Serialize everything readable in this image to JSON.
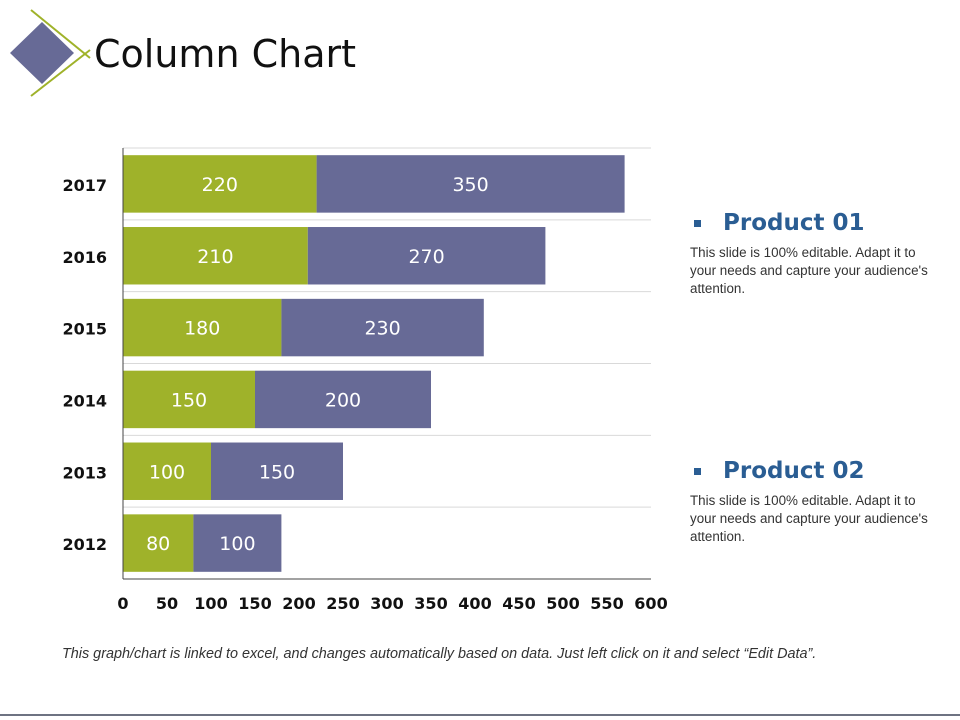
{
  "page": {
    "title": "Column Chart"
  },
  "colors": {
    "product_01": "#9fb22a",
    "product_02": "#676a96",
    "accent": "#2a5d93",
    "diamond": "#676a96",
    "diamond_line": "#9fb22a"
  },
  "chart_data": {
    "type": "bar",
    "orientation": "horizontal",
    "stacked": true,
    "categories": [
      "2017",
      "2016",
      "2015",
      "2014",
      "2013",
      "2012"
    ],
    "series": [
      {
        "name": "Product 01",
        "values": [
          220,
          210,
          180,
          150,
          100,
          80
        ]
      },
      {
        "name": "Product 02",
        "values": [
          350,
          270,
          230,
          200,
          150,
          100
        ]
      }
    ],
    "xlim": [
      0,
      600
    ],
    "xticks": [
      0,
      50,
      100,
      150,
      200,
      250,
      300,
      350,
      400,
      450,
      500,
      550,
      600
    ],
    "grid": true,
    "data_labels": true,
    "legend_placement": "right"
  },
  "legend": {
    "items": [
      {
        "name": "Product 01",
        "description": "This slide is 100% editable. Adapt it to your needs and capture your audience's attention."
      },
      {
        "name": "Product 02",
        "description": "This slide is 100% editable. Adapt it to your needs and capture your audience's attention."
      }
    ]
  },
  "footnote": "This graph/chart is linked to excel, and changes automatically based on data. Just left click on it and select “Edit Data”."
}
